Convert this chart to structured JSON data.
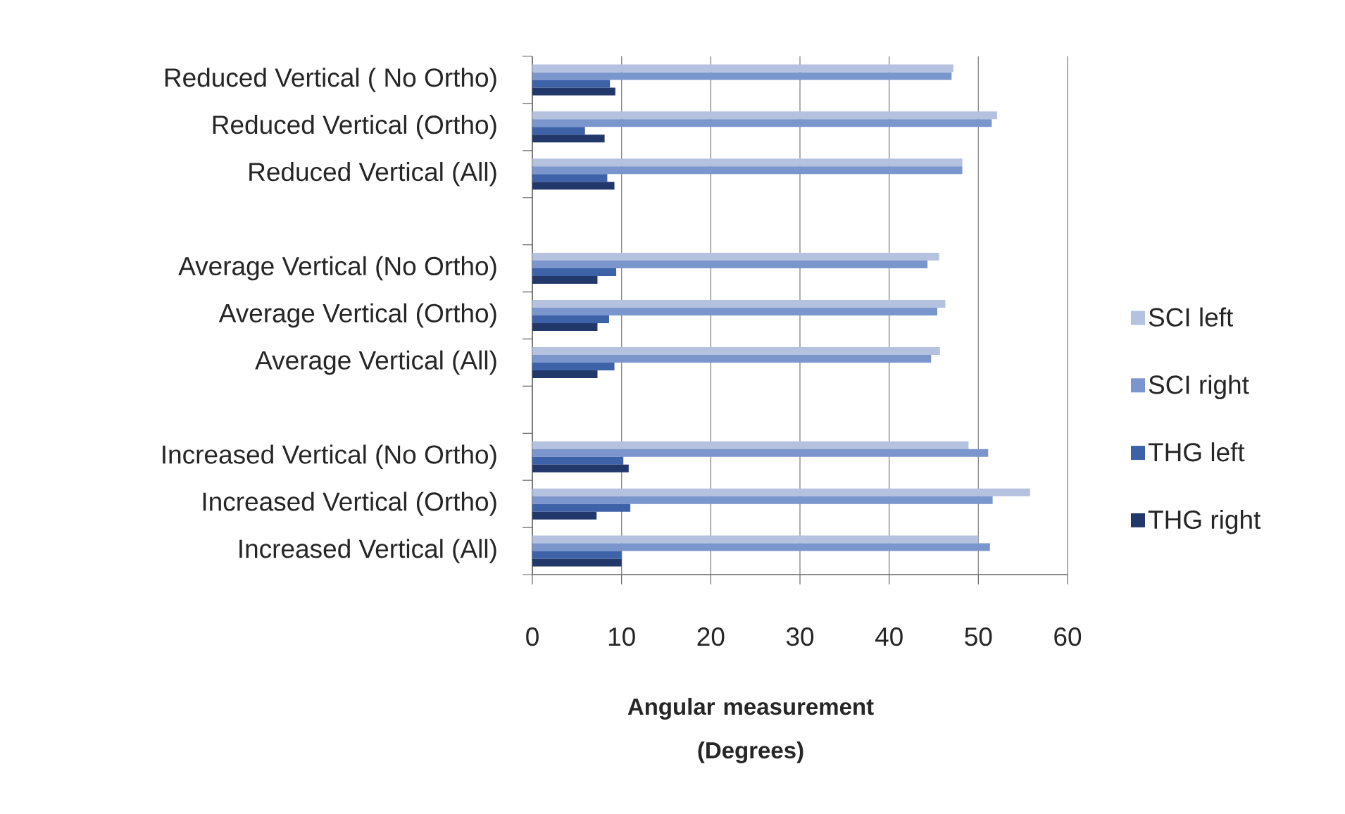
{
  "chart_data": {
    "type": "bar",
    "orientation": "horizontal",
    "categories": [
      "Reduced Vertical ( No Ortho)",
      "Reduced Vertical (Ortho)",
      "Reduced Vertical (All)",
      null,
      "Average Vertical (No Ortho)",
      "Average Vertical (Ortho)",
      "Average Vertical (All)",
      null,
      "Increased Vertical (No Ortho)",
      "Increased Vertical (Ortho)",
      "Increased Vertical (All)"
    ],
    "series": [
      {
        "name": "SCI left",
        "color": "#b4c2e0",
        "values": [
          47.2,
          52.1,
          48.2,
          null,
          45.6,
          46.3,
          45.7,
          null,
          48.9,
          55.8,
          50.0
        ]
      },
      {
        "name": "SCI right",
        "color": "#7b96cc",
        "values": [
          47.0,
          51.5,
          48.2,
          null,
          44.3,
          45.4,
          44.7,
          null,
          51.1,
          51.6,
          51.3
        ]
      },
      {
        "name": "THG left",
        "color": "#3e62a8",
        "values": [
          8.7,
          5.9,
          8.4,
          null,
          9.4,
          8.6,
          9.2,
          null,
          10.2,
          11.0,
          10.0
        ]
      },
      {
        "name": "THG right",
        "color": "#22386b",
        "values": [
          9.3,
          8.1,
          9.2,
          null,
          7.3,
          7.3,
          7.3,
          null,
          10.8,
          7.2,
          10.0
        ]
      }
    ],
    "xlim": [
      0,
      60
    ],
    "xticks": [
      0,
      10,
      20,
      30,
      40,
      50,
      60
    ],
    "xlabel": "Angular measurement (Degrees)",
    "grid": "x",
    "legend": "right"
  }
}
